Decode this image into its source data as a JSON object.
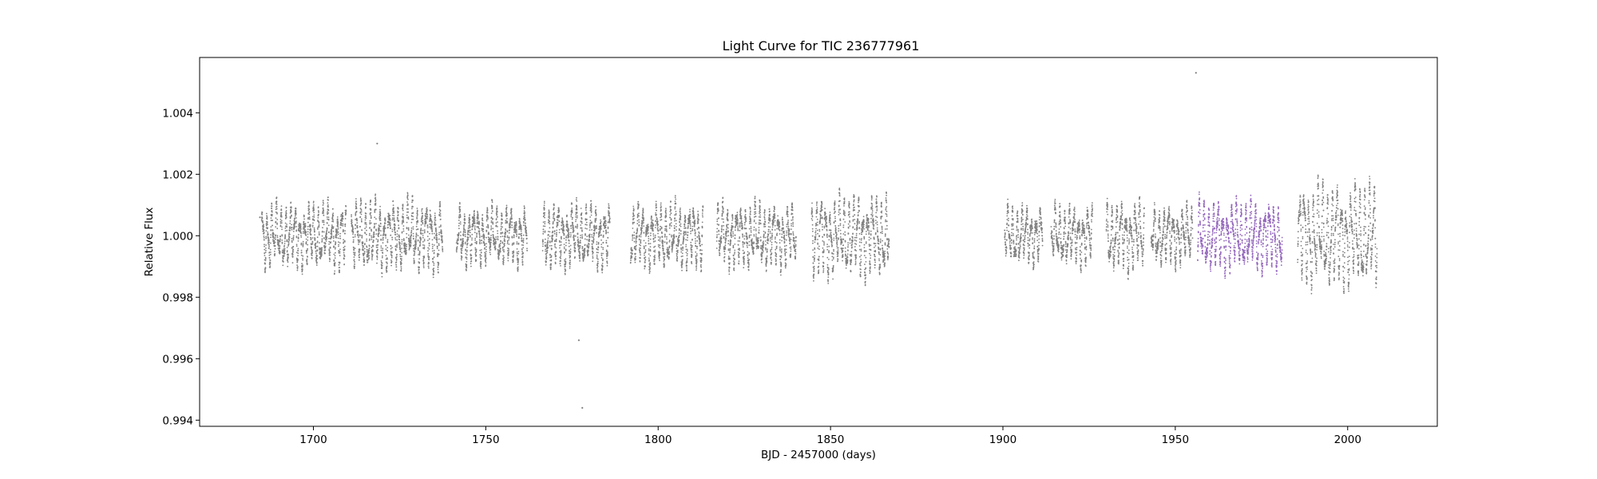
{
  "chart_data": {
    "type": "scatter",
    "title": "Light Curve for TIC 236777961",
    "xlabel": "BJD - 2457000 (days)",
    "ylabel": "Relative Flux",
    "xlim": [
      1667,
      2026
    ],
    "ylim": [
      0.9938,
      1.0058
    ],
    "xticks": [
      1700,
      1750,
      1800,
      1850,
      1900,
      1950,
      2000
    ],
    "xtick_labels": [
      "1700",
      "1750",
      "1800",
      "1850",
      "1900",
      "1950",
      "2000"
    ],
    "yticks": [
      0.994,
      0.996,
      0.998,
      1.0,
      1.002,
      1.004
    ],
    "ytick_labels": [
      "0.994",
      "0.996",
      "0.998",
      "1.000",
      "1.002",
      "1.004"
    ],
    "grid": false,
    "legend": "none",
    "series": [
      {
        "color": "#808080",
        "segments": [
          {
            "x0": 1685.0,
            "x1": 1709.5,
            "amp": 0.0011,
            "period": 1.35,
            "seed": 11
          },
          {
            "x0": 1711.0,
            "x1": 1737.5,
            "amp": 0.0012,
            "period": 1.35,
            "seed": 12
          },
          {
            "x0": 1741.5,
            "x1": 1762.0,
            "amp": 0.001,
            "period": 1.35,
            "seed": 13
          },
          {
            "x0": 1766.5,
            "x1": 1786.0,
            "amp": 0.0011,
            "period": 1.35,
            "seed": 14
          },
          {
            "x0": 1792.0,
            "x1": 1813.0,
            "amp": 0.0011,
            "period": 1.35,
            "seed": 15
          },
          {
            "x0": 1817.0,
            "x1": 1840.0,
            "amp": 0.0011,
            "period": 1.35,
            "seed": 16
          },
          {
            "x0": 1844.5,
            "x1": 1867.0,
            "amp": 0.0014,
            "period": 1.35,
            "seed": 17
          },
          {
            "x0": 1900.5,
            "x1": 1911.5,
            "amp": 0.001,
            "period": 1.35,
            "seed": 18
          },
          {
            "x0": 1914.0,
            "x1": 1926.0,
            "amp": 0.001,
            "period": 1.35,
            "seed": 19
          },
          {
            "x0": 1930.0,
            "x1": 1941.0,
            "amp": 0.0012,
            "period": 1.35,
            "seed": 20
          },
          {
            "x0": 1943.0,
            "x1": 1955.0,
            "amp": 0.001,
            "period": 1.35,
            "seed": 21
          },
          {
            "x0": 1985.5,
            "x1": 2008.5,
            "amp": 0.0018,
            "period": 1.35,
            "seed": 22
          }
        ],
        "outliers": [
          [
            1956.0,
            1.0053
          ],
          [
            1778.0,
            0.9944
          ],
          [
            1777.0,
            0.9966
          ],
          [
            1718.5,
            1.003
          ],
          [
            1684.5,
            1.0006
          ]
        ]
      },
      {
        "color": "#9467bd",
        "segments": [
          {
            "x0": 1956.5,
            "x1": 1981.0,
            "amp": 0.0012,
            "period": 1.35,
            "seed": 31
          }
        ],
        "outliers": []
      }
    ]
  }
}
